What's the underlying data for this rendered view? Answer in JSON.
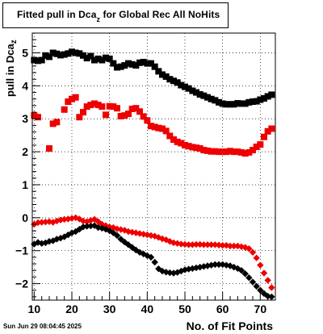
{
  "title_main": "Fitted pull in Dca",
  "title_sub": "z",
  "title_rest": " for Global Rec All NoHits",
  "ylabel_main": "pull in Dca",
  "ylabel_sub": "z",
  "xlabel": "No. of Fit Points",
  "datestamp": "Sun Jun 29 08:04:45 2025",
  "colors": {
    "black": "#000000",
    "red": "#ee0000"
  },
  "chart_data": {
    "type": "scatter",
    "xlim": [
      9.5,
      74
    ],
    "ylim": [
      -2.5,
      5.6
    ],
    "xticks": [
      10,
      20,
      30,
      40,
      50,
      60,
      70
    ],
    "yticks": [
      -2,
      -1,
      0,
      1,
      2,
      3,
      4,
      5
    ],
    "grid": true,
    "series": [
      {
        "color": "black",
        "marker": "square",
        "x": [
          10,
          11,
          12,
          13,
          14,
          15,
          16,
          17,
          18,
          19,
          20,
          21,
          22,
          23,
          24,
          25,
          26,
          27,
          28,
          29,
          30,
          31,
          32,
          33,
          34,
          35,
          36,
          37,
          38,
          39,
          40,
          41,
          42,
          43,
          44,
          45,
          46,
          47,
          48,
          49,
          50,
          51,
          52,
          53,
          54,
          55,
          56,
          57,
          58,
          59,
          60,
          61,
          62,
          63,
          64,
          65,
          66,
          67,
          68,
          69,
          70,
          71,
          72,
          73
        ],
        "y": [
          4.78,
          4.76,
          4.78,
          4.92,
          4.88,
          5.0,
          4.97,
          4.93,
          4.95,
          4.98,
          5.03,
          5.0,
          4.98,
          4.92,
          4.84,
          4.9,
          4.78,
          4.82,
          4.78,
          4.85,
          4.82,
          4.68,
          4.56,
          4.58,
          4.62,
          4.68,
          4.65,
          4.62,
          4.7,
          4.72,
          4.68,
          4.68,
          4.58,
          4.44,
          4.34,
          4.28,
          4.2,
          4.15,
          4.1,
          4.02,
          3.97,
          3.92,
          3.85,
          3.8,
          3.74,
          3.7,
          3.65,
          3.6,
          3.56,
          3.5,
          3.46,
          3.44,
          3.44,
          3.44,
          3.47,
          3.46,
          3.46,
          3.5,
          3.52,
          3.53,
          3.58,
          3.62,
          3.68,
          3.73
        ]
      },
      {
        "color": "red",
        "marker": "square",
        "x": [
          10,
          11,
          14,
          15,
          16,
          18,
          19,
          20,
          21,
          22,
          23,
          24,
          25,
          26,
          27,
          28,
          29,
          30,
          31,
          32,
          33,
          34,
          35,
          36,
          37,
          38,
          39,
          40,
          41,
          42,
          43,
          44,
          45,
          46,
          47,
          48,
          49,
          50,
          51,
          52,
          53,
          54,
          55,
          56,
          57,
          58,
          59,
          60,
          61,
          62,
          63,
          64,
          65,
          66,
          67,
          68,
          69,
          70,
          71,
          72,
          73
        ],
        "y": [
          3.1,
          3.05,
          2.1,
          2.85,
          2.9,
          3.28,
          3.52,
          3.6,
          3.65,
          3.05,
          3.2,
          3.37,
          3.42,
          3.46,
          3.42,
          3.37,
          3.12,
          3.38,
          3.37,
          3.32,
          3.08,
          3.1,
          3.15,
          3.3,
          3.32,
          3.22,
          3.07,
          2.95,
          2.78,
          2.75,
          2.72,
          2.7,
          2.63,
          2.48,
          2.37,
          2.3,
          2.26,
          2.2,
          2.17,
          2.14,
          2.12,
          2.1,
          2.05,
          2.03,
          2.01,
          2.01,
          2.0,
          2.0,
          2.0,
          2.02,
          2.0,
          2.0,
          1.98,
          1.95,
          1.98,
          2.05,
          2.15,
          2.22,
          2.45,
          2.62,
          2.7
        ]
      },
      {
        "color": "red",
        "marker": "diamond",
        "x": [
          10,
          11,
          12,
          13,
          14,
          15,
          16,
          17,
          18,
          19,
          20,
          21,
          22,
          23,
          24,
          25,
          26,
          27,
          28,
          29,
          30,
          31,
          32,
          33,
          34,
          35,
          36,
          37,
          38,
          39,
          40,
          41,
          42,
          43,
          44,
          45,
          46,
          47,
          48,
          49,
          50,
          51,
          52,
          53,
          54,
          55,
          56,
          57,
          58,
          59,
          60,
          61,
          62,
          63,
          64,
          65,
          66,
          67,
          68,
          69,
          70,
          71,
          72,
          73
        ],
        "y": [
          -0.2,
          -0.15,
          -0.14,
          -0.13,
          -0.12,
          -0.14,
          -0.1,
          -0.07,
          -0.05,
          -0.04,
          -0.02,
          0.0,
          -0.04,
          -0.1,
          -0.12,
          -0.08,
          -0.05,
          -0.12,
          -0.2,
          -0.24,
          -0.28,
          -0.3,
          -0.34,
          -0.36,
          -0.38,
          -0.42,
          -0.44,
          -0.46,
          -0.48,
          -0.5,
          -0.52,
          -0.54,
          -0.56,
          -0.6,
          -0.64,
          -0.67,
          -0.72,
          -0.76,
          -0.78,
          -0.8,
          -0.81,
          -0.82,
          -0.82,
          -0.81,
          -0.81,
          -0.82,
          -0.82,
          -0.82,
          -0.82,
          -0.83,
          -0.84,
          -0.84,
          -0.86,
          -0.86,
          -0.86,
          -0.88,
          -0.9,
          -0.94,
          -1.05,
          -1.22,
          -1.44,
          -1.68,
          -1.9,
          -2.12
        ]
      },
      {
        "color": "black",
        "marker": "diamond",
        "x": [
          10,
          11,
          12,
          13,
          14,
          15,
          16,
          17,
          18,
          19,
          20,
          21,
          22,
          23,
          24,
          25,
          26,
          27,
          28,
          29,
          30,
          31,
          32,
          33,
          34,
          35,
          36,
          37,
          38,
          39,
          40,
          41,
          42,
          43,
          44,
          45,
          46,
          47,
          48,
          49,
          50,
          51,
          52,
          53,
          54,
          55,
          56,
          57,
          58,
          59,
          60,
          61,
          62,
          63,
          64,
          65,
          66,
          67,
          68,
          69,
          70,
          71,
          72,
          73
        ],
        "y": [
          -0.8,
          -0.75,
          -0.78,
          -0.76,
          -0.72,
          -0.7,
          -0.65,
          -0.62,
          -0.58,
          -0.52,
          -0.46,
          -0.42,
          -0.35,
          -0.28,
          -0.26,
          -0.25,
          -0.24,
          -0.3,
          -0.32,
          -0.35,
          -0.4,
          -0.46,
          -0.54,
          -0.65,
          -0.74,
          -0.82,
          -0.9,
          -0.98,
          -1.05,
          -1.1,
          -1.15,
          -1.2,
          -1.35,
          -1.55,
          -1.62,
          -1.65,
          -1.67,
          -1.68,
          -1.66,
          -1.62,
          -1.58,
          -1.56,
          -1.54,
          -1.52,
          -1.5,
          -1.48,
          -1.46,
          -1.44,
          -1.42,
          -1.42,
          -1.42,
          -1.44,
          -1.46,
          -1.5,
          -1.54,
          -1.6,
          -1.7,
          -1.82,
          -1.95,
          -2.08,
          -2.2,
          -2.3,
          -2.38,
          -2.4
        ]
      }
    ]
  }
}
